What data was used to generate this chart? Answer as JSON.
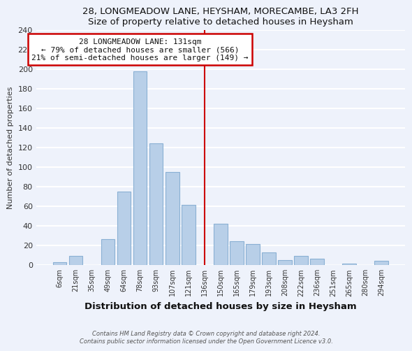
{
  "title1": "28, LONGMEADOW LANE, HEYSHAM, MORECAMBE, LA3 2FH",
  "title2": "Size of property relative to detached houses in Heysham",
  "xlabel": "Distribution of detached houses by size in Heysham",
  "ylabel": "Number of detached properties",
  "bar_labels": [
    "6sqm",
    "21sqm",
    "35sqm",
    "49sqm",
    "64sqm",
    "78sqm",
    "93sqm",
    "107sqm",
    "121sqm",
    "136sqm",
    "150sqm",
    "165sqm",
    "179sqm",
    "193sqm",
    "208sqm",
    "222sqm",
    "236sqm",
    "251sqm",
    "265sqm",
    "280sqm",
    "294sqm"
  ],
  "bar_heights": [
    3,
    9,
    0,
    26,
    75,
    198,
    124,
    95,
    61,
    0,
    42,
    24,
    21,
    13,
    5,
    9,
    6,
    0,
    1,
    0,
    4
  ],
  "bar_color": "#b8cfe8",
  "bar_edge_color": "#8ab0d4",
  "vline_x_index": 9,
  "vline_color": "#cc0000",
  "annotation_title": "28 LONGMEADOW LANE: 131sqm",
  "annotation_line1": "← 79% of detached houses are smaller (566)",
  "annotation_line2": "21% of semi-detached houses are larger (149) →",
  "annotation_box_color": "#ffffff",
  "annotation_box_edge": "#cc0000",
  "ylim": [
    0,
    240
  ],
  "yticks": [
    0,
    20,
    40,
    60,
    80,
    100,
    120,
    140,
    160,
    180,
    200,
    220,
    240
  ],
  "footer1": "Contains HM Land Registry data © Crown copyright and database right 2024.",
  "footer2": "Contains public sector information licensed under the Open Government Licence v3.0.",
  "bg_color": "#eef2fb",
  "grid_color": "#ffffff"
}
